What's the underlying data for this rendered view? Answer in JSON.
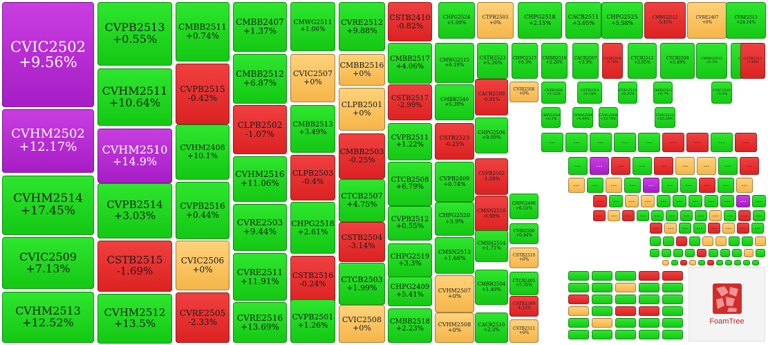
{
  "colors": {
    "up": "#1fd31f",
    "down": "#e53232",
    "flat": "#f8c462",
    "ceiling": "#b82cd4"
  },
  "logo": {
    "text": "FoamTree"
  },
  "chart_data": {
    "type": "heatmap",
    "title": "",
    "unit": "%",
    "tiles": [
      {
        "symbol": "CVIC2502",
        "change": "+9.56%",
        "status": "ceiling"
      },
      {
        "symbol": "CVHM2502",
        "change": "+12.17%",
        "status": "ceiling"
      },
      {
        "symbol": "CVHM2514",
        "change": "+17.45%",
        "status": "up"
      },
      {
        "symbol": "CVIC2509",
        "change": "+7.13%",
        "status": "up"
      },
      {
        "symbol": "CVHM2513",
        "change": "+12.52%",
        "status": "up"
      },
      {
        "symbol": "CVPB2513",
        "change": "+0.55%",
        "status": "up"
      },
      {
        "symbol": "CVHM2511",
        "change": "+10.64%",
        "status": "up"
      },
      {
        "symbol": "CVHM2510",
        "change": "+14.9%",
        "status": "ceiling"
      },
      {
        "symbol": "CVPB2514",
        "change": "+3.03%",
        "status": "up"
      },
      {
        "symbol": "CSTB2515",
        "change": "-1.69%",
        "status": "down"
      },
      {
        "symbol": "CVHM2512",
        "change": "+13.5%",
        "status": "up"
      },
      {
        "symbol": "CMBB2511",
        "change": "+0.74%",
        "status": "up"
      },
      {
        "symbol": "CVPB2515",
        "change": "-0.42%",
        "status": "down"
      },
      {
        "symbol": "CVHM2408",
        "change": "+10.1%",
        "status": "up"
      },
      {
        "symbol": "CVPB2516",
        "change": "+0.44%",
        "status": "up"
      },
      {
        "symbol": "CVIC2506",
        "change": "+0%",
        "status": "flat"
      },
      {
        "symbol": "CVRE2505",
        "change": "-2.33%",
        "status": "down"
      },
      {
        "symbol": "CMBB2407",
        "change": "+1.37%",
        "status": "up"
      },
      {
        "symbol": "CMBB2512",
        "change": "+6.87%",
        "status": "up"
      },
      {
        "symbol": "CLPB2502",
        "change": "-1.07%",
        "status": "down"
      },
      {
        "symbol": "CVHM2516",
        "change": "+11.06%",
        "status": "up"
      },
      {
        "symbol": "CVRE2503",
        "change": "+9.44%",
        "status": "up"
      },
      {
        "symbol": "CVRE2511",
        "change": "+11.91%",
        "status": "up"
      },
      {
        "symbol": "CVRE2516",
        "change": "+13.69%",
        "status": "up"
      },
      {
        "symbol": "CMWG2511",
        "change": "+1.06%",
        "status": "up"
      },
      {
        "symbol": "CVIC2507",
        "change": "+0%",
        "status": "flat"
      },
      {
        "symbol": "CMBB2513",
        "change": "+3.49%",
        "status": "up"
      },
      {
        "symbol": "CLPB2503",
        "change": "-0.4%",
        "status": "down"
      },
      {
        "symbol": "CHPG2518",
        "change": "+2.61%",
        "status": "up"
      },
      {
        "symbol": "CSTB2516",
        "change": "-0.24%",
        "status": "down"
      },
      {
        "symbol": "CVPB2501",
        "change": "+1.26%",
        "status": "up"
      },
      {
        "symbol": "CVRE2512",
        "change": "+9.88%",
        "status": "up"
      },
      {
        "symbol": "CMBB2516",
        "change": "+0%",
        "status": "flat"
      },
      {
        "symbol": "CLPB2501",
        "change": "+0%",
        "status": "flat"
      },
      {
        "symbol": "CMBB2503",
        "change": "-0.25%",
        "status": "down"
      },
      {
        "symbol": "CTCB2507",
        "change": "+4.75%",
        "status": "up"
      },
      {
        "symbol": "CSTB2504",
        "change": "-3.14%",
        "status": "down"
      },
      {
        "symbol": "CTCB2503",
        "change": "+1.99%",
        "status": "up"
      },
      {
        "symbol": "CVIC2508",
        "change": "+0%",
        "status": "flat"
      },
      {
        "symbol": "CSTB2410",
        "change": "-0.82%",
        "status": "down"
      },
      {
        "symbol": "CMBB2517",
        "change": "+4.06%",
        "status": "up"
      },
      {
        "symbol": "CSTB2517",
        "change": "-2.99%",
        "status": "down"
      },
      {
        "symbol": "CVPB2511",
        "change": "+1.22%",
        "status": "up"
      },
      {
        "symbol": "CTCB2508",
        "change": "+6.79%",
        "status": "up"
      },
      {
        "symbol": "CVPB2512",
        "change": "+0.55%",
        "status": "up"
      },
      {
        "symbol": "CHPG2519",
        "change": "+3.3%",
        "status": "up"
      },
      {
        "symbol": "CHPG2409",
        "change": "+5.41%",
        "status": "up"
      },
      {
        "symbol": "CMBB2518",
        "change": "+2.23%",
        "status": "up"
      },
      {
        "symbol": "CMWG2515",
        "change": "+0.19%",
        "status": "up"
      },
      {
        "symbol": "CMBB2540",
        "change": "+5.39%",
        "status": "up"
      },
      {
        "symbol": "CSTB2523",
        "change": "-0.25%",
        "status": "down"
      },
      {
        "symbol": "CVPB2409",
        "change": "+0.74%",
        "status": "up"
      },
      {
        "symbol": "CHPG2520",
        "change": "+5.9%",
        "status": "up"
      },
      {
        "symbol": "CMSN2513",
        "change": "+1.66%",
        "status": "up"
      },
      {
        "symbol": "CVHM2507",
        "change": "+0%",
        "status": "flat"
      },
      {
        "symbol": "CVHM2508",
        "change": "+0%",
        "status": "flat"
      },
      {
        "symbol": "CHPG2524",
        "change": "+1.09%",
        "status": "up"
      },
      {
        "symbol": "CSTB2523",
        "change": "+5.26%",
        "status": "up"
      },
      {
        "symbol": "CACB2508",
        "change": "-0.91%",
        "status": "down"
      },
      {
        "symbol": "CHPG2506",
        "change": "+9.09%",
        "status": "up"
      },
      {
        "symbol": "CVPB2502",
        "change": "-1.68%",
        "status": "down"
      },
      {
        "symbol": "CMSN2516",
        "change": "-0.98%",
        "status": "down"
      },
      {
        "symbol": "CMSN2514",
        "change": "+1.71%",
        "status": "up"
      },
      {
        "symbol": "CMBB2504",
        "change": "+1.49%",
        "status": "up"
      },
      {
        "symbol": "CACB2510",
        "change": "+2.3%",
        "status": "up"
      },
      {
        "symbol": "CTPB2503",
        "change": "+0%",
        "status": "flat"
      },
      {
        "symbol": "CHPG2517",
        "change": "+6.3%",
        "status": "up"
      },
      {
        "symbol": "CVIB2508",
        "change": "+0%",
        "status": "flat"
      },
      {
        "symbol": "CHPG2406",
        "change": "+6.51%",
        "status": "up"
      },
      {
        "symbol": "CVIB2506",
        "change": "+0.44%",
        "status": "up"
      },
      {
        "symbol": "CSTB2510",
        "change": "+0%",
        "status": "flat"
      },
      {
        "symbol": "CTCB2405",
        "change": "+5.35%",
        "status": "up"
      },
      {
        "symbol": "CSTB2509",
        "change": "-4.12%",
        "status": "down"
      },
      {
        "symbol": "CSTB2511",
        "change": "+0%",
        "status": "flat"
      },
      {
        "symbol": "CHPG2518",
        "change": "+2.15%",
        "status": "up"
      },
      {
        "symbol": "CMBB2510",
        "change": "+2.26%",
        "status": "up"
      },
      {
        "symbol": "CVIB2506",
        "change": "+1.12%",
        "status": "up"
      },
      {
        "symbol": "CACB2511",
        "change": "+3.05%",
        "status": "up"
      },
      {
        "symbol": "CACB2507",
        "change": "+3.9%",
        "status": "up"
      },
      {
        "symbol": "CSTB2514",
        "change": "+0.18%",
        "status": "up"
      },
      {
        "symbol": "CVIB2504",
        "change": "-0.76%",
        "status": "down"
      },
      {
        "symbol": "CHPG2525",
        "change": "+5.58%",
        "status": "up"
      },
      {
        "symbol": "CTCB2512",
        "change": "+2.05%",
        "status": "up"
      },
      {
        "symbol": "CVIC2511",
        "change": "+6.32%",
        "status": "up"
      },
      {
        "symbol": "CMWG2512",
        "change": "-5.41%",
        "status": "down"
      },
      {
        "symbol": "CTCB2509",
        "change": "+5.49%",
        "status": "up"
      },
      {
        "symbol": "CMSN2512",
        "change": "+4.7%",
        "status": "up"
      },
      {
        "symbol": "CVRE2407",
        "change": "+0%",
        "status": "flat"
      },
      {
        "symbol": "CMWG2513",
        "change": "+0.3%",
        "status": "up"
      },
      {
        "symbol": "CVIC2510",
        "change": "+5.4%",
        "status": "up"
      },
      {
        "symbol": "CVRE2513",
        "change": "+24.14%",
        "status": "up"
      },
      {
        "symbol": "CVRE2514",
        "change": "+12.17%",
        "status": "up"
      },
      {
        "symbol": "CSTB2512",
        "change": "-2.44%",
        "status": "down"
      },
      {
        "symbol": "CHPG2504",
        "change": "+6.1%",
        "status": "up"
      },
      {
        "symbol": "CVHM2509",
        "change": "+4.44%",
        "status": "up"
      },
      {
        "symbol": "CVIC2504",
        "change": "+12.78%",
        "status": "up"
      },
      {
        "symbol": "CVIC2512",
        "change": "+55.29%",
        "status": "up"
      }
    ],
    "collapsed_tiles": [
      "up",
      "up",
      "up",
      "up",
      "up",
      "down",
      "down",
      "up",
      "down",
      "up",
      "ceiling",
      "down",
      "up",
      "down",
      "flat",
      "flat",
      "up",
      "down",
      "flat",
      "up",
      "flat",
      "up",
      "ceiling",
      "up",
      "up",
      "down",
      "up",
      "flat",
      "down",
      "up",
      "flat",
      "flat",
      "up",
      "up",
      "up",
      "up",
      "up",
      "ceiling",
      "up",
      "down",
      "flat",
      "down",
      "up",
      "up",
      "up",
      "up",
      "up",
      "flat",
      "up",
      "down",
      "up",
      "down",
      "flat",
      "up",
      "up",
      "down",
      "flat",
      "down",
      "up",
      "up",
      "up",
      "down",
      "up",
      "flat",
      "flat",
      "up",
      "up",
      "flat",
      "up",
      "up",
      "up",
      "up",
      "down",
      "up",
      "up",
      "up",
      "flat",
      "up",
      "flat",
      "up",
      "down",
      "flat",
      "up",
      "down",
      "up",
      "up",
      "up",
      "up",
      "up",
      "up",
      "up",
      "up",
      "down",
      "down",
      "up",
      "up",
      "flat",
      "up",
      "up",
      "down",
      "up",
      "up",
      "up",
      "up",
      "flat",
      "up",
      "down",
      "down",
      "up",
      "up",
      "flat",
      "up",
      "up",
      "up",
      "up",
      "up",
      "up",
      "up",
      "up",
      "down",
      "up",
      "flat",
      "up",
      "flat",
      "up",
      "up",
      "up",
      "down",
      "up",
      "down",
      "up",
      "flat",
      "down",
      "up",
      "up",
      "up"
    ]
  }
}
